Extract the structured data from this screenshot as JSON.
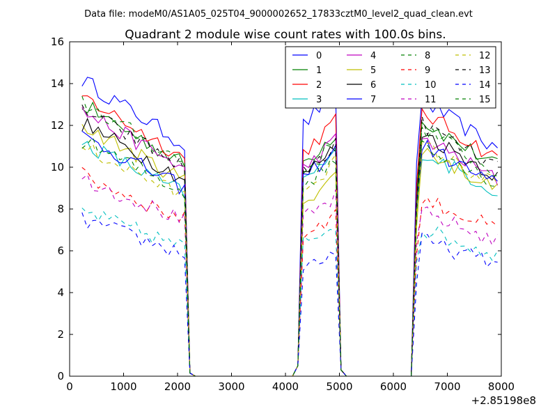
{
  "page": {
    "suptitle": "Data file: modeM0/AS1A05_025T04_9000002652_17833cztM0_level2_quad_clean.evt"
  },
  "chart_data": {
    "type": "line",
    "title": "Quadrant 2 module wise count rates with 100.0s bins.",
    "xlabel": "",
    "ylabel": "",
    "x_offset_label": "+2.85198e8",
    "xlim": [
      0,
      8000
    ],
    "ylim": [
      0,
      16
    ],
    "xticks": [
      0,
      1000,
      2000,
      3000,
      4000,
      5000,
      6000,
      7000,
      8000
    ],
    "yticks": [
      0,
      2,
      4,
      6,
      8,
      10,
      12,
      14,
      16
    ],
    "legend_position": "top-right",
    "legend_columns": 4,
    "segments": [
      {
        "x_start": 230,
        "x_end": 2130,
        "step": 100
      },
      {
        "x_start": 4330,
        "x_end": 4930,
        "step": 100
      },
      {
        "x_start": 6530,
        "x_end": 7930,
        "step": 100
      }
    ],
    "drop_points": [
      2230,
      2330,
      4230,
      5030,
      6430
    ],
    "series": [
      {
        "name": "0",
        "color": "#0000ff",
        "dash": "solid",
        "levels": [
          14.2,
          12.0,
          11.8
        ]
      },
      {
        "name": "1",
        "color": "#008000",
        "dash": "solid",
        "levels": [
          13.0,
          10.2,
          10.9
        ]
      },
      {
        "name": "2",
        "color": "#ff0000",
        "dash": "solid",
        "levels": [
          13.4,
          10.7,
          11.3
        ]
      },
      {
        "name": "3",
        "color": "#00bfbf",
        "dash": "solid",
        "levels": [
          11.2,
          9.3,
          9.6
        ]
      },
      {
        "name": "4",
        "color": "#bf00bf",
        "dash": "solid",
        "levels": [
          12.7,
          9.9,
          10.2
        ]
      },
      {
        "name": "5",
        "color": "#bfbf00",
        "dash": "solid",
        "levels": [
          12.0,
          8.4,
          9.7
        ]
      },
      {
        "name": "6",
        "color": "#000000",
        "dash": "solid",
        "levels": [
          12.1,
          9.6,
          10.4
        ]
      },
      {
        "name": "7",
        "color": "#0000ff",
        "dash": "solid",
        "levels": [
          11.5,
          9.5,
          9.9
        ]
      },
      {
        "name": "8",
        "color": "#008000",
        "dash": "dashed",
        "levels": [
          13.1,
          9.8,
          10.6
        ]
      },
      {
        "name": "9",
        "color": "#ff0000",
        "dash": "dashed",
        "levels": [
          9.6,
          6.8,
          7.6
        ]
      },
      {
        "name": "10",
        "color": "#00bfbf",
        "dash": "dashed",
        "levels": [
          7.9,
          6.4,
          6.3
        ]
      },
      {
        "name": "11",
        "color": "#bf00bf",
        "dash": "dashed",
        "levels": [
          9.5,
          7.5,
          7.0
        ]
      },
      {
        "name": "12",
        "color": "#bfbf00",
        "dash": "dashed",
        "levels": [
          11.0,
          9.0,
          9.9
        ]
      },
      {
        "name": "13",
        "color": "#000000",
        "dash": "dashed",
        "levels": [
          12.8,
          9.7,
          10.8
        ]
      },
      {
        "name": "14",
        "color": "#0000ff",
        "dash": "dashed",
        "levels": [
          7.5,
          5.2,
          5.8
        ]
      },
      {
        "name": "15",
        "color": "#008000",
        "dash": "dashed",
        "levels": [
          11.3,
          9.1,
          10.0
        ]
      }
    ]
  }
}
